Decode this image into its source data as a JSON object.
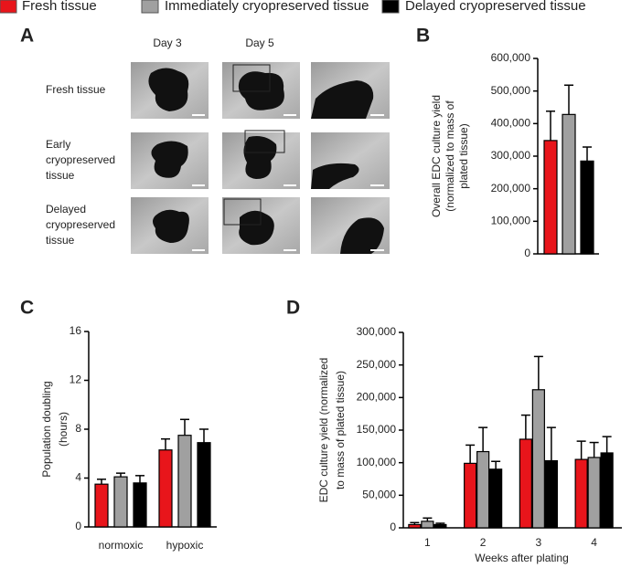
{
  "legend_order": [
    0,
    1,
    2
  ],
  "panel_letters": [
    "A",
    "B",
    "C",
    "D"
  ],
  "panel_a": {
    "columns": [
      "Day 3",
      "Day 5"
    ],
    "rows": [
      [
        "Fresh tissue"
      ],
      [
        "Early",
        "cryopreserved",
        "tissue"
      ],
      [
        "Delayed",
        "cryopreserved",
        "tissue"
      ]
    ]
  },
  "chart_data": [
    {
      "type": "bar",
      "ylabel": [
        "Overall EDC culture yield",
        "(normalized to mass of",
        "plated tissue)"
      ],
      "categories": [
        null
      ],
      "series": [
        {
          "name": "Fresh tissue",
          "color": "#e8151b",
          "values": [
            348000
          ],
          "errors": [
            90000
          ]
        },
        {
          "name": "Immediately cryopreserved tissue",
          "color": "#a0a0a0",
          "values": [
            428000
          ],
          "errors": [
            90000
          ]
        },
        {
          "name": "Delayed cryopreserved tissue",
          "color": "#000000",
          "values": [
            285000
          ],
          "errors": [
            43000
          ]
        }
      ],
      "ylim": [
        0,
        600000
      ],
      "yticks": [
        0,
        {
          "value": 100000,
          "label": "100,000"
        },
        {
          "value": 200000,
          "label": "200,000"
        },
        {
          "value": 300000,
          "label": "300,000"
        },
        {
          "value": 400000,
          "label": "400,000"
        },
        {
          "value": 500000,
          "label": "500,000"
        },
        {
          "value": 600000,
          "label": "600,000"
        }
      ]
    },
    {
      "type": "bar",
      "ylabel": [
        "Population doubling",
        "(hours)"
      ],
      "categories": [
        "normoxic",
        "hypoxic"
      ],
      "series": [
        {
          "name": "Fresh tissue",
          "color": "#e8151b",
          "values": [
            3.5,
            6.3
          ],
          "errors": [
            0.4,
            0.9
          ]
        },
        {
          "name": "Immediately cryopreserved tissue",
          "color": "#a0a0a0",
          "values": [
            4.1,
            7.5
          ],
          "errors": [
            0.3,
            1.3
          ]
        },
        {
          "name": "Delayed cryopreserved tissue",
          "color": "#000000",
          "values": [
            3.6,
            6.9
          ],
          "errors": [
            0.6,
            1.1
          ]
        }
      ],
      "ylim": [
        0,
        16
      ],
      "yticks": [
        0,
        4,
        8,
        12,
        16
      ]
    },
    {
      "type": "bar",
      "ylabel": [
        "EDC culture yield (normalized",
        "to mass of plated tissue)"
      ],
      "xlabel": "Weeks after plating",
      "categories": [
        "1",
        "2",
        "3",
        "4"
      ],
      "series": [
        {
          "name": "Fresh tissue",
          "color": "#e8151b",
          "values": [
            5000,
            99000,
            136000,
            105000
          ],
          "errors": [
            3000,
            28000,
            37000,
            28000
          ]
        },
        {
          "name": "Immediately cryopreserved tissue",
          "color": "#a0a0a0",
          "values": [
            10000,
            117000,
            212000,
            108000
          ],
          "errors": [
            5000,
            37000,
            51000,
            23000
          ]
        },
        {
          "name": "Delayed cryopreserved tissue",
          "color": "#000000",
          "values": [
            5000,
            90000,
            103000,
            115000
          ],
          "errors": [
            2000,
            12000,
            51000,
            25000
          ]
        }
      ],
      "ylim": [
        0,
        300000
      ],
      "yticks": [
        0,
        {
          "value": 50000,
          "label": "50,000"
        },
        {
          "value": 100000,
          "label": "100,000"
        },
        {
          "value": 150000,
          "label": "150,000"
        },
        {
          "value": 200000,
          "label": "200,000"
        },
        {
          "value": 250000,
          "label": "250,000"
        },
        {
          "value": 300000,
          "label": "300,000"
        }
      ]
    }
  ]
}
